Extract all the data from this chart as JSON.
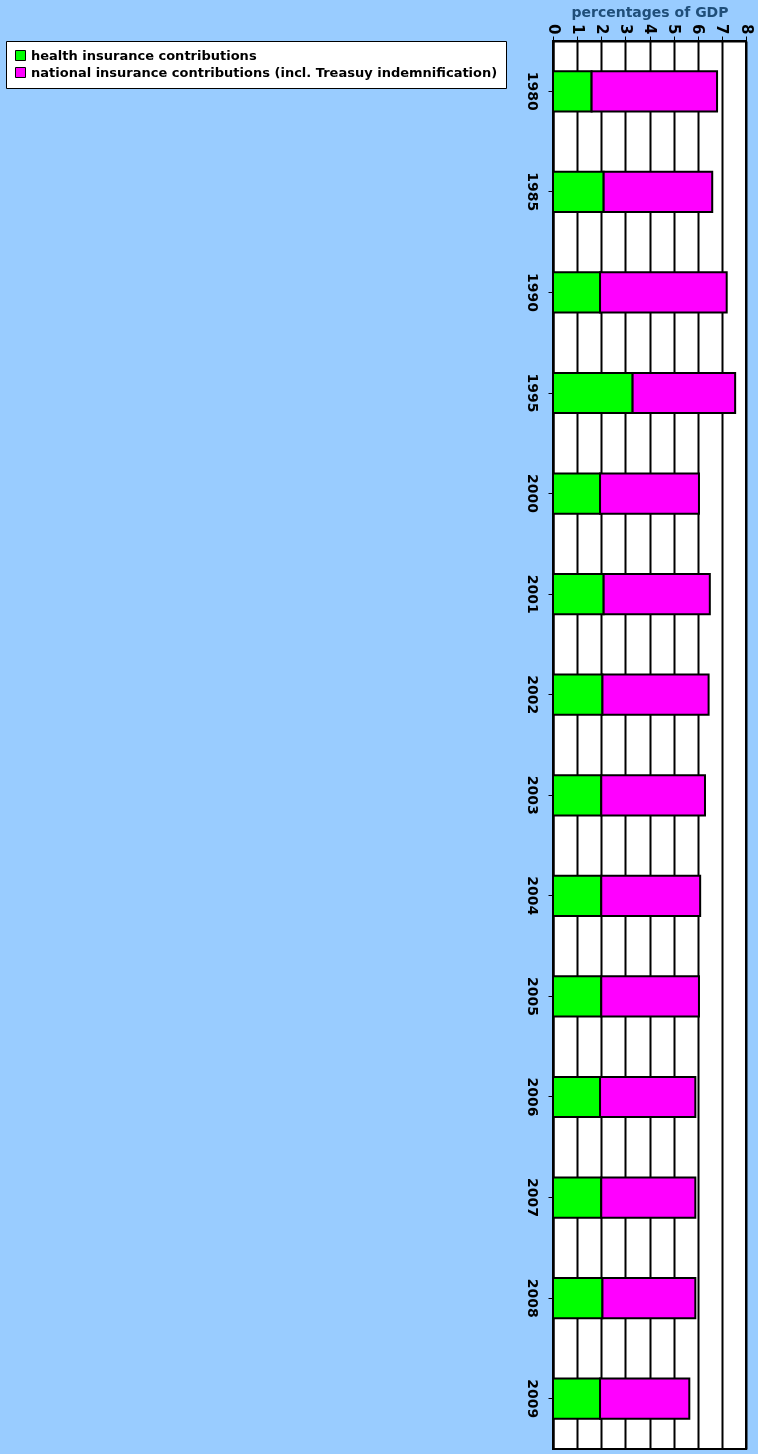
{
  "chart_data": {
    "type": "bar",
    "orientation": "horizontal",
    "stacked": true,
    "xlabel": "percentages of GDP",
    "categories": [
      "1980",
      "1985",
      "1990",
      "1995",
      "2000",
      "2001",
      "2002",
      "2003",
      "2004",
      "2005",
      "2006",
      "2007",
      "2008",
      "2009"
    ],
    "series": [
      {
        "name": "health insurance contributions",
        "color": "#00ff00",
        "values": [
          1.6,
          2.1,
          1.95,
          3.3,
          1.95,
          2.1,
          2.05,
          2.0,
          2.0,
          2.0,
          1.95,
          2.0,
          2.05,
          1.95
        ]
      },
      {
        "name": "national insurance contributions (incl. Treasuy indemnification)",
        "color": "#ff00ff",
        "values": [
          5.2,
          4.5,
          5.25,
          4.25,
          4.1,
          4.4,
          4.4,
          4.3,
          4.1,
          4.05,
          3.95,
          3.9,
          3.85,
          3.7
        ]
      }
    ],
    "xlim": [
      0,
      8
    ],
    "xticks": [
      0,
      1,
      2,
      3,
      4,
      5,
      6,
      7,
      8
    ],
    "grid": "x",
    "legend": "left"
  }
}
